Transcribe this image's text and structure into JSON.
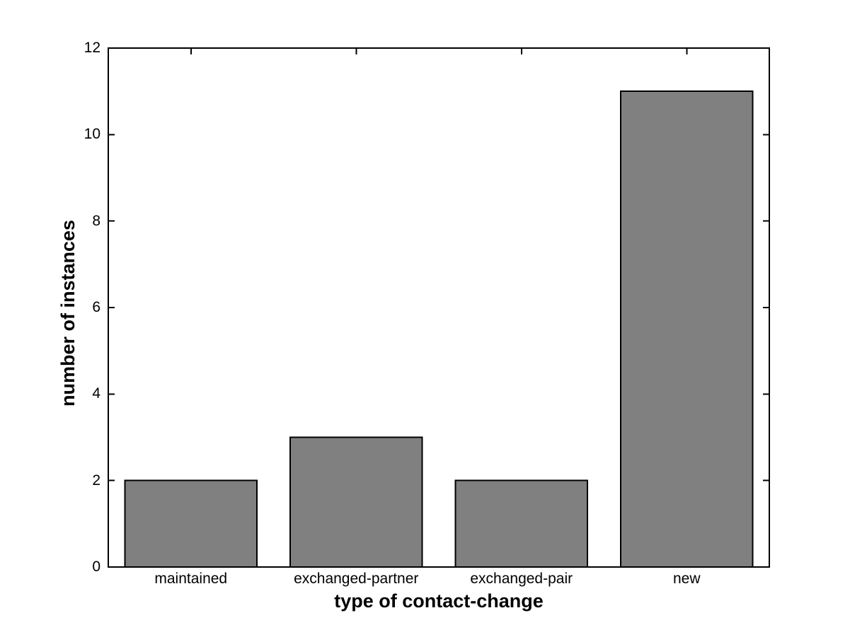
{
  "figure": {
    "background": "#ffffff"
  },
  "chart_data": {
    "type": "bar",
    "title": "",
    "categories": [
      "maintained",
      "exchanged-partner",
      "exchanged-pair",
      "new"
    ],
    "values": [
      2,
      3,
      2,
      11
    ],
    "xlabel": "type of contact-change",
    "ylabel": "number of instances",
    "yticks": [
      0,
      2,
      4,
      6,
      8,
      10,
      12
    ],
    "ylim": [
      0,
      12
    ],
    "bar_width_fraction": 0.8,
    "bar_fill": "#808080",
    "bar_edge": "#000000",
    "axis_color": "#000000",
    "tick_direction": "in",
    "box": true,
    "grid": false,
    "legend": "none"
  }
}
